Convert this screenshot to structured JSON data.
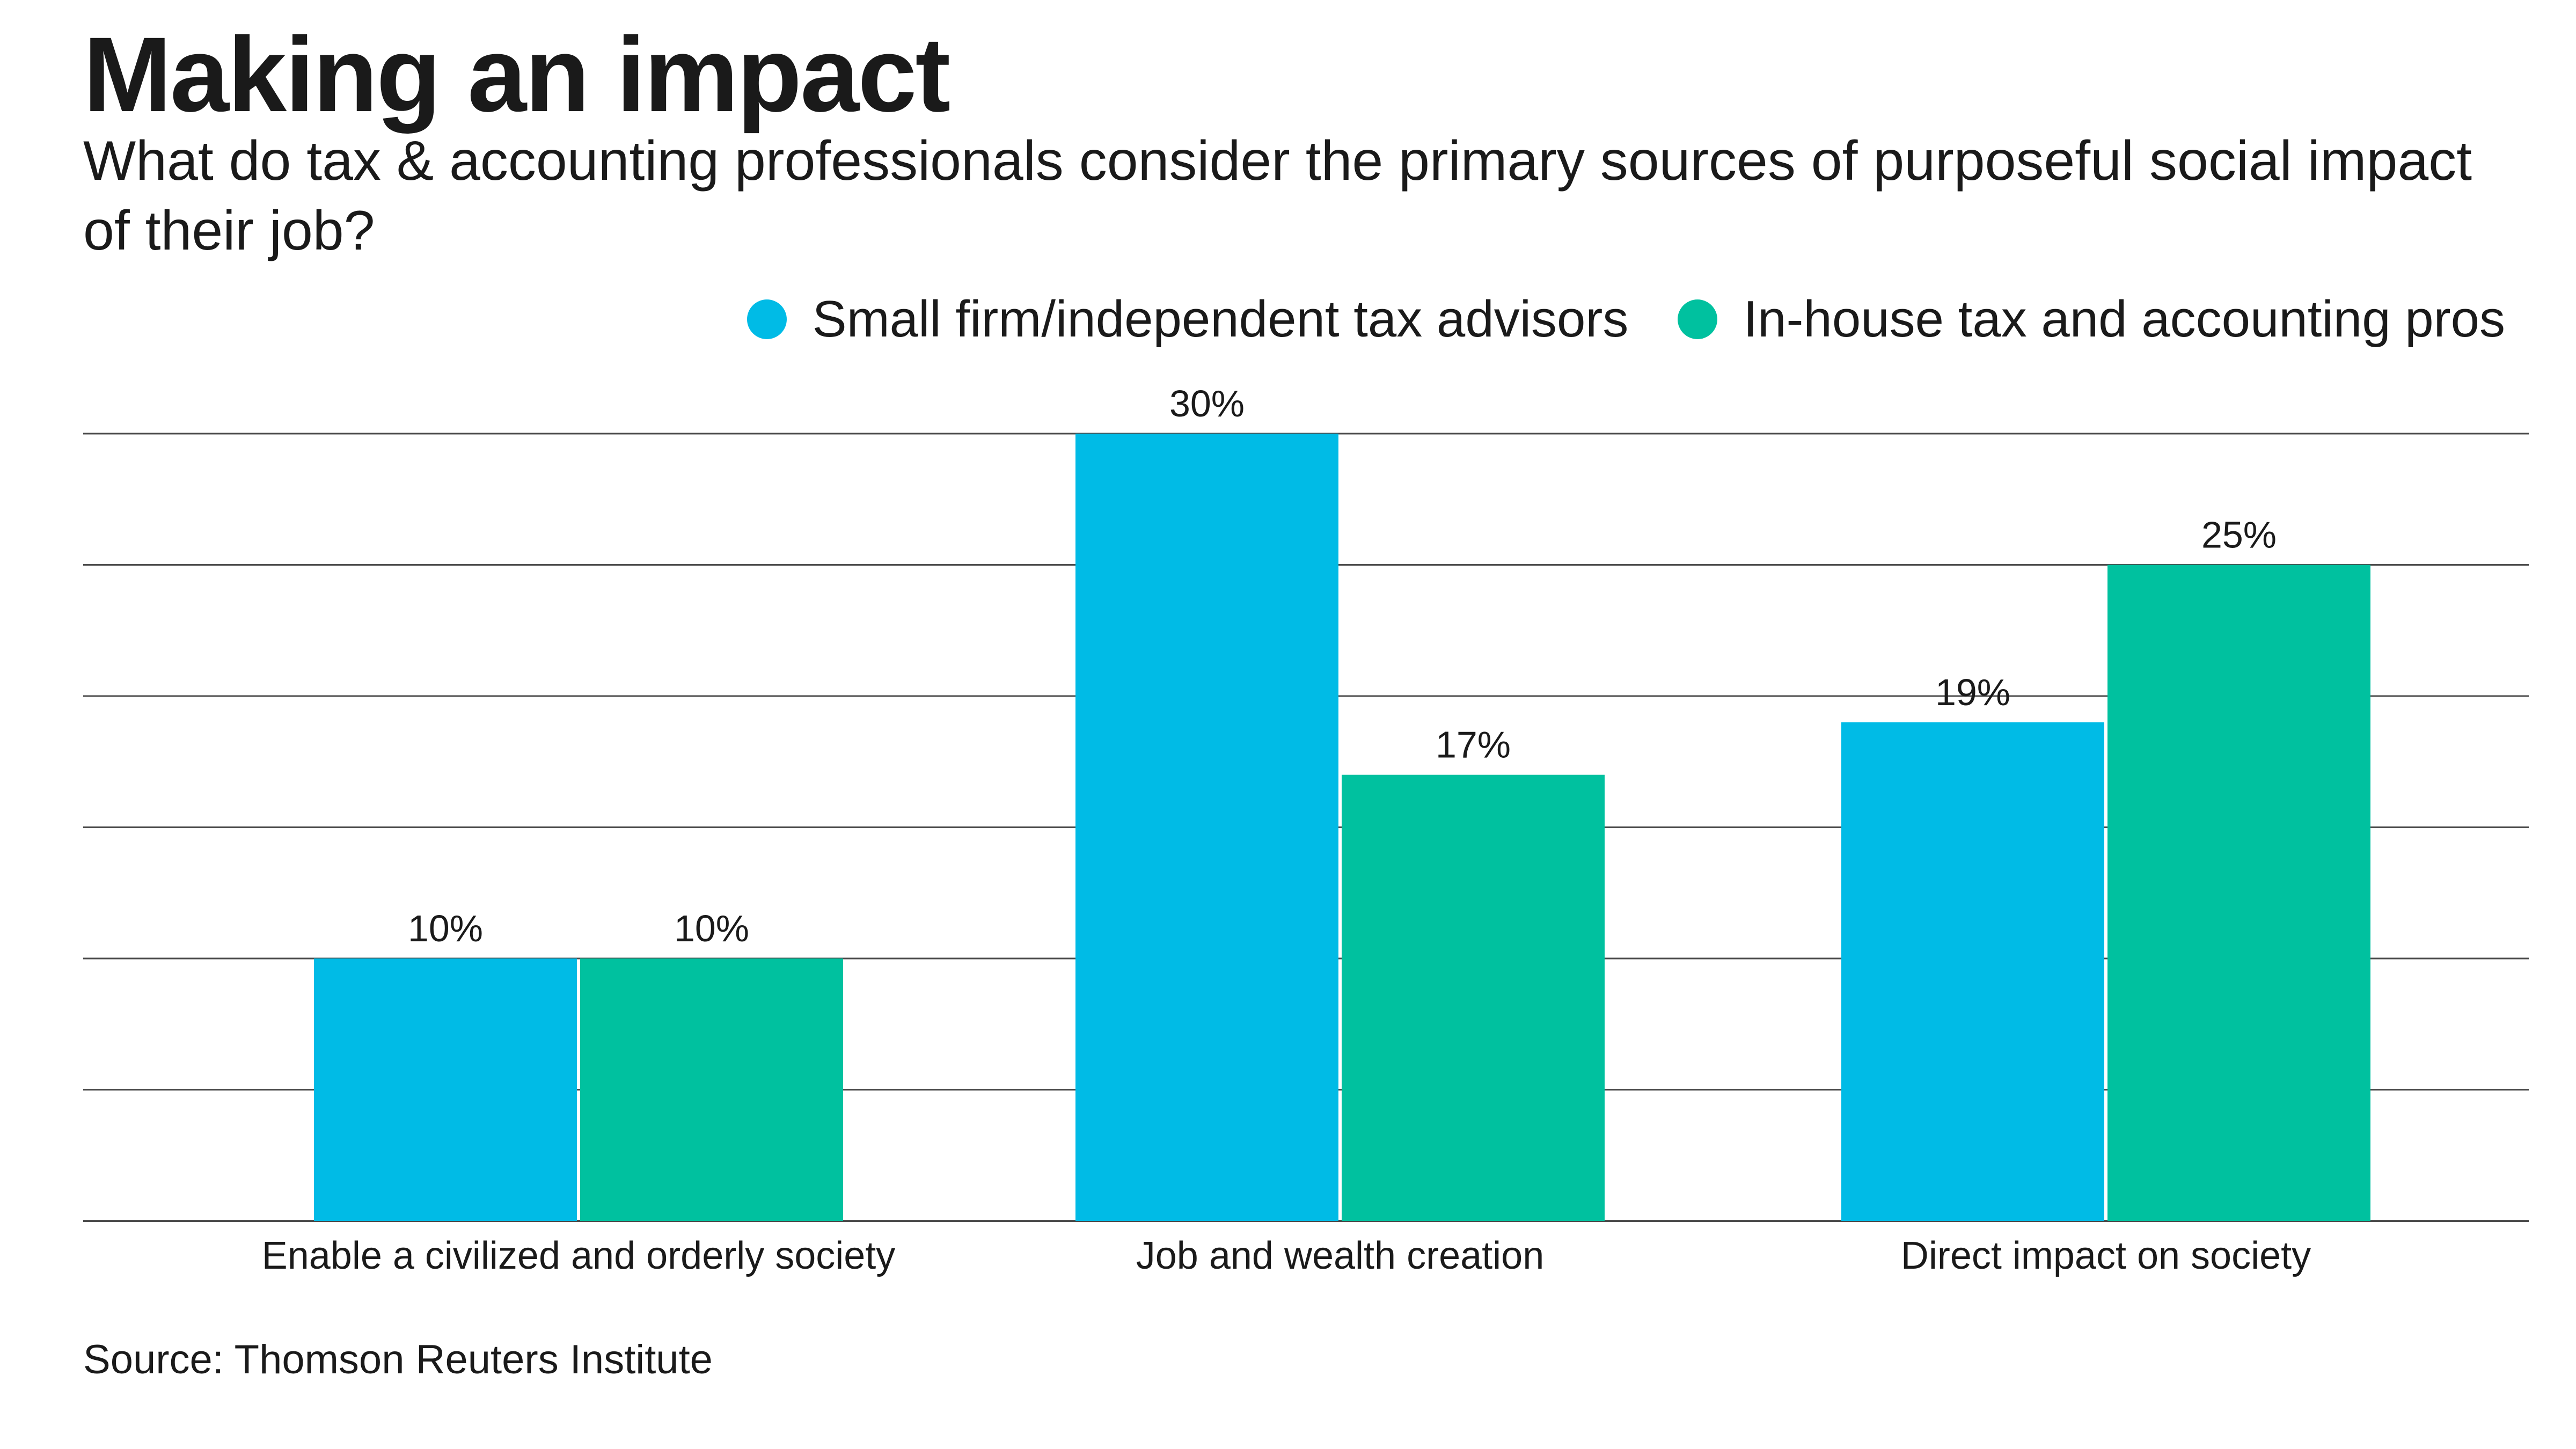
{
  "title": "Making an impact",
  "subtitle": "What do tax & accounting professionals consider the primary sources of purposeful social impact of their job?",
  "source": "Source: Thomson Reuters Institute",
  "colors": {
    "series_0": "#00BBE6",
    "series_1": "#00C19F",
    "grid": "#4d4d4d",
    "text": "#1a1a1a"
  },
  "chart_data": {
    "type": "bar",
    "title": "Making an impact",
    "subtitle": "What do tax & accounting professionals consider the primary sources of purposeful social impact of their job?",
    "xlabel": "",
    "ylabel": "",
    "ylim": [
      0,
      30
    ],
    "grid": true,
    "legend_position": "top-right",
    "categories": [
      "Enable a civilized and orderly society",
      "Job and wealth creation",
      "Direct impact on society"
    ],
    "series": [
      {
        "name": "Small firm/independent tax advisors",
        "values": [
          10,
          30,
          19
        ],
        "labels": [
          "10%",
          "30%",
          "19%"
        ]
      },
      {
        "name": "In-house tax and accounting pros",
        "values": [
          10,
          17,
          25
        ],
        "labels": [
          "10%",
          "17%",
          "25%"
        ]
      }
    ]
  }
}
